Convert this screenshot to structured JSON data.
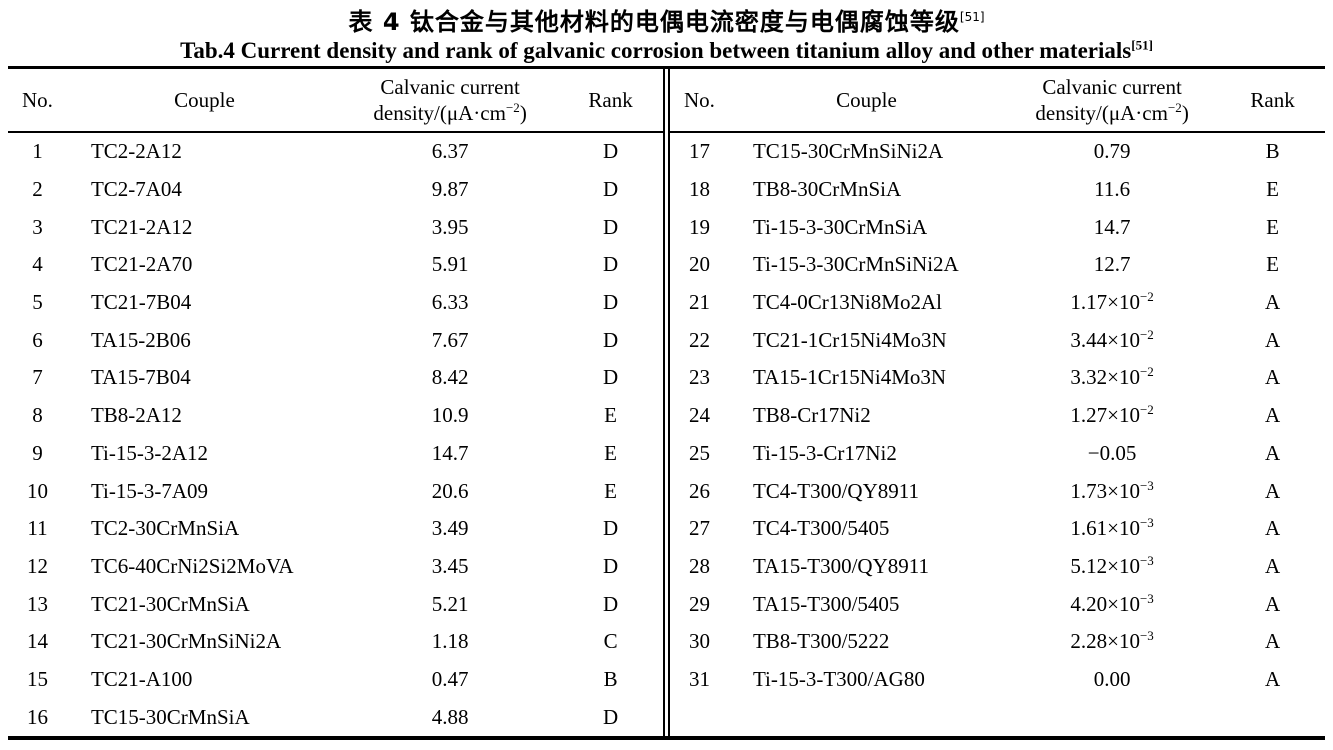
{
  "page": {
    "title_zh": "表 4  钛合金与其他材料的电偶电流密度与电偶腐蚀等级^{[51]}",
    "title_en": "Tab.4 Current density and rank of galvanic corrosion between titanium alloy and other materials^{[51]}"
  },
  "colors": {
    "text": "#000000",
    "background": "#ffffff",
    "rule": "#000000"
  },
  "table": {
    "headers": {
      "no": "No.",
      "couple": "Couple",
      "density_line1": "Calvanic current",
      "density_line2": "density/(μA·cm^{−2})",
      "rank": "Rank"
    },
    "left_rows": [
      {
        "no": "1",
        "couple": "TC2-2A12",
        "density": "6.37",
        "rank": "D"
      },
      {
        "no": "2",
        "couple": "TC2-7A04",
        "density": "9.87",
        "rank": "D"
      },
      {
        "no": "3",
        "couple": "TC21-2A12",
        "density": "3.95",
        "rank": "D"
      },
      {
        "no": "4",
        "couple": "TC21-2A70",
        "density": "5.91",
        "rank": "D"
      },
      {
        "no": "5",
        "couple": "TC21-7B04",
        "density": "6.33",
        "rank": "D"
      },
      {
        "no": "6",
        "couple": "TA15-2B06",
        "density": "7.67",
        "rank": "D"
      },
      {
        "no": "7",
        "couple": "TA15-7B04",
        "density": "8.42",
        "rank": "D"
      },
      {
        "no": "8",
        "couple": "TB8-2A12",
        "density": "10.9",
        "rank": "E"
      },
      {
        "no": "9",
        "couple": "Ti-15-3-2A12",
        "density": "14.7",
        "rank": "E"
      },
      {
        "no": "10",
        "couple": "Ti-15-3-7A09",
        "density": "20.6",
        "rank": "E"
      },
      {
        "no": "11",
        "couple": "TC2-30CrMnSiA",
        "density": "3.49",
        "rank": "D"
      },
      {
        "no": "12",
        "couple": "TC6-40CrNi2Si2MoVA",
        "density": "3.45",
        "rank": "D"
      },
      {
        "no": "13",
        "couple": "TC21-30CrMnSiA",
        "density": "5.21",
        "rank": "D"
      },
      {
        "no": "14",
        "couple": "TC21-30CrMnSiNi2A",
        "density": "1.18",
        "rank": "C"
      },
      {
        "no": "15",
        "couple": "TC21-A100",
        "density": "0.47",
        "rank": "B"
      },
      {
        "no": "16",
        "couple": "TC15-30CrMnSiA",
        "density": "4.88",
        "rank": "D"
      }
    ],
    "right_rows": [
      {
        "no": "17",
        "couple": "TC15-30CrMnSiNi2A",
        "density": "0.79",
        "rank": "B"
      },
      {
        "no": "18",
        "couple": "TB8-30CrMnSiA",
        "density": "11.6",
        "rank": "E"
      },
      {
        "no": "19",
        "couple": "Ti-15-3-30CrMnSiA",
        "density": "14.7",
        "rank": "E"
      },
      {
        "no": "20",
        "couple": "Ti-15-3-30CrMnSiNi2A",
        "density": "12.7",
        "rank": "E"
      },
      {
        "no": "21",
        "couple": "TC4-0Cr13Ni8Mo2Al",
        "density": "1.17×10^{−2}",
        "rank": "A"
      },
      {
        "no": "22",
        "couple": "TC21-1Cr15Ni4Mo3N",
        "density": "3.44×10^{−2}",
        "rank": "A"
      },
      {
        "no": "23",
        "couple": "TA15-1Cr15Ni4Mo3N",
        "density": "3.32×10^{−2}",
        "rank": "A"
      },
      {
        "no": "24",
        "couple": "TB8-Cr17Ni2",
        "density": "1.27×10^{−2}",
        "rank": "A"
      },
      {
        "no": "25",
        "couple": "Ti-15-3-Cr17Ni2",
        "density": "−0.05",
        "rank": "A"
      },
      {
        "no": "26",
        "couple": "TC4-T300/QY8911",
        "density": "1.73×10^{−3}",
        "rank": "A"
      },
      {
        "no": "27",
        "couple": "TC4-T300/5405",
        "density": "1.61×10^{−3}",
        "rank": "A"
      },
      {
        "no": "28",
        "couple": "TA15-T300/QY8911",
        "density": "5.12×10^{−3}",
        "rank": "A"
      },
      {
        "no": "29",
        "couple": "TA15-T300/5405",
        "density": "4.20×10^{−3}",
        "rank": "A"
      },
      {
        "no": "30",
        "couple": "TB8-T300/5222",
        "density": "2.28×10^{−3}",
        "rank": "A"
      },
      {
        "no": "31",
        "couple": "Ti-15-3-T300/AG80",
        "density": "0.00",
        "rank": "A"
      }
    ]
  }
}
